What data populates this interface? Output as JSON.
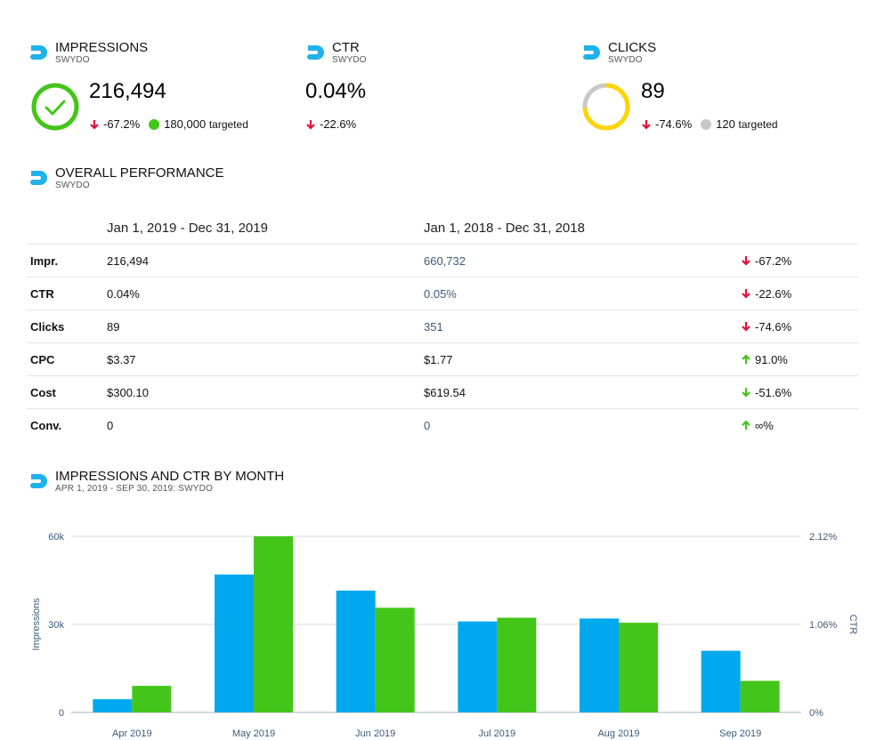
{
  "colors": {
    "green": "#44c51a",
    "blue": "#00a8ee",
    "red": "#e0113b",
    "yellow": "#ffd400",
    "gray": "#c8c8c8",
    "logo": "#1fb1ea"
  },
  "widgets": {
    "impressions": {
      "title": "IMPRESSIONS",
      "source": "SWYDO",
      "value": "216,494",
      "change": "-67.2%",
      "target_value": "180,000",
      "target_label": "targeted",
      "status_icon": "check-icon"
    },
    "ctr": {
      "title": "CTR",
      "source": "SWYDO",
      "value": "0.04%",
      "change": "-22.6%"
    },
    "clicks": {
      "title": "CLICKS",
      "source": "SWYDO",
      "value": "89",
      "change": "-74.6%",
      "target_value": "120",
      "target_label": "targeted",
      "progress": 0.74
    }
  },
  "overall": {
    "title": "OVERALL PERFORMANCE",
    "source": "SWYDO",
    "period_current": "Jan 1, 2019 - Dec 31, 2019",
    "period_previous": "Jan 1, 2018 - Dec 31, 2018",
    "rows": [
      {
        "metric": "Impr.",
        "current": "216,494",
        "previous": "660,732",
        "change": "-67.2%",
        "direction": "down",
        "tone": "bad"
      },
      {
        "metric": "CTR",
        "current": "0.04%",
        "previous": "0.05%",
        "change": "-22.6%",
        "direction": "down",
        "tone": "bad"
      },
      {
        "metric": "Clicks",
        "current": "89",
        "previous": "351",
        "change": "-74.6%",
        "direction": "down",
        "tone": "bad"
      },
      {
        "metric": "CPC",
        "current": "$3.37",
        "previous": "$1.77",
        "change": "91.0%",
        "direction": "up",
        "tone": "good"
      },
      {
        "metric": "Cost",
        "current": "$300.10",
        "previous": "$619.54",
        "change": "-51.6%",
        "direction": "down",
        "tone": "good"
      },
      {
        "metric": "Conv.",
        "current": "0",
        "previous": "0",
        "change": "∞%",
        "direction": "up",
        "tone": "good"
      }
    ]
  },
  "chart_section": {
    "title": "IMPRESSIONS AND CTR BY MONTH",
    "subtitle": "APR 1, 2019 - SEP 30, 2019:  SWYDO"
  },
  "chart_data": {
    "type": "bar",
    "categories": [
      "Apr 2019",
      "May 2019",
      "Jun 2019",
      "Jul 2019",
      "Aug 2019",
      "Sep 2019"
    ],
    "series": [
      {
        "name": "Impressions",
        "axis": "left",
        "color": "#00a8ee",
        "values": [
          4500,
          47000,
          41500,
          31000,
          32000,
          21000
        ]
      },
      {
        "name": "CTR",
        "axis": "right",
        "color": "#44c51a",
        "values": [
          0.32,
          2.12,
          1.26,
          1.14,
          1.08,
          0.38
        ]
      }
    ],
    "ylabel": "Impressions",
    "y2label": "CTR",
    "ylim": [
      0,
      60000
    ],
    "y2lim": [
      0,
      2.12
    ],
    "yticks": [
      "0",
      "30k",
      "60k"
    ],
    "y2ticks": [
      "0%",
      "1.06%",
      "2.12%"
    ]
  }
}
